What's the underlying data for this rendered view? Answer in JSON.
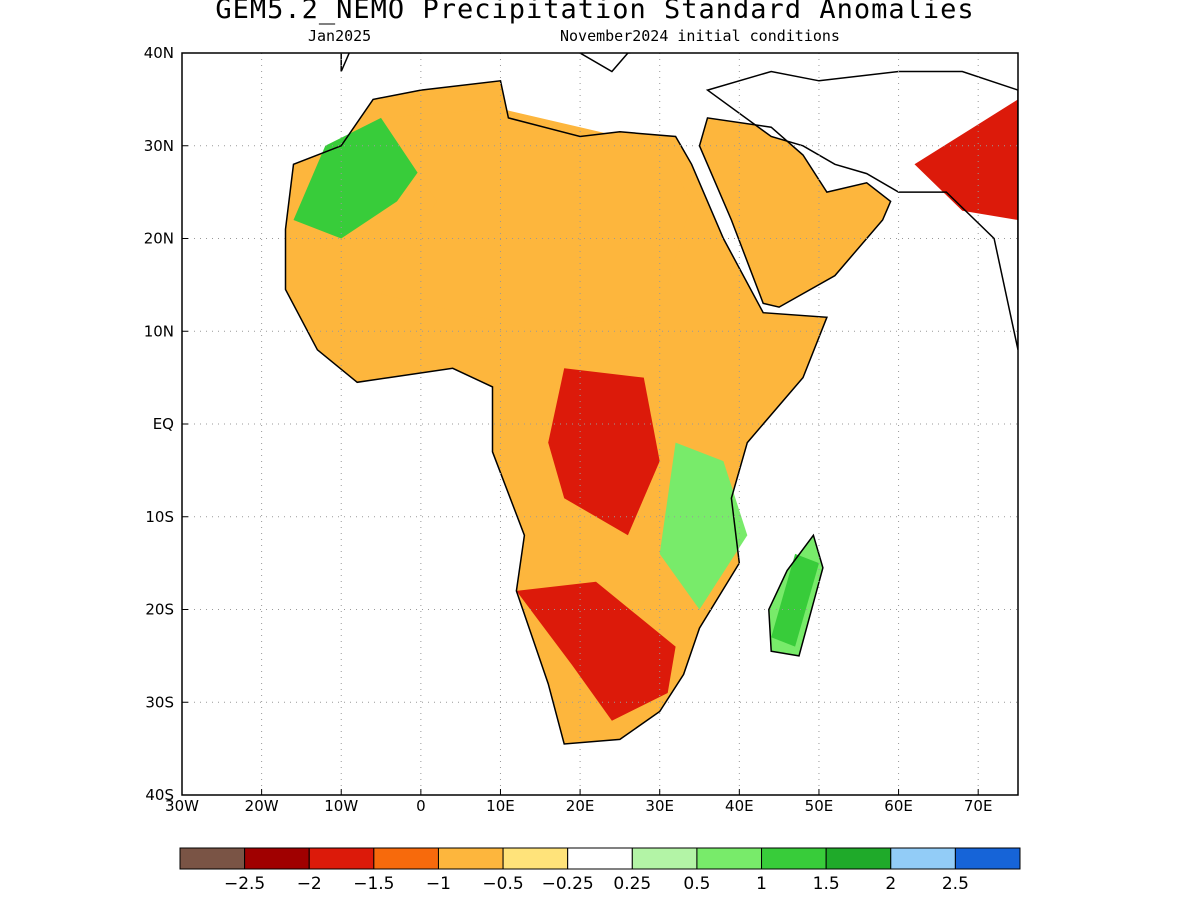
{
  "header": {
    "title": "GEM5.2_NEMO Precipitation Standard Anomalies",
    "valid_month": "Jan2025",
    "init": "November2024 initial conditions"
  },
  "map": {
    "lon_range": [
      -30,
      75
    ],
    "lat_range": [
      -40,
      40
    ],
    "lon_ticks": [
      {
        "v": -30,
        "label": "30W"
      },
      {
        "v": -20,
        "label": "20W"
      },
      {
        "v": -10,
        "label": "10W"
      },
      {
        "v": 0,
        "label": "0"
      },
      {
        "v": 10,
        "label": "10E"
      },
      {
        "v": 20,
        "label": "20E"
      },
      {
        "v": 30,
        "label": "30E"
      },
      {
        "v": 40,
        "label": "40E"
      },
      {
        "v": 50,
        "label": "50E"
      },
      {
        "v": 60,
        "label": "60E"
      },
      {
        "v": 70,
        "label": "70E"
      }
    ],
    "lat_ticks": [
      {
        "v": 40,
        "label": "40N"
      },
      {
        "v": 30,
        "label": "30N"
      },
      {
        "v": 20,
        "label": "20N"
      },
      {
        "v": 10,
        "label": "10N"
      },
      {
        "v": 0,
        "label": "EQ"
      },
      {
        "v": -10,
        "label": "10S"
      },
      {
        "v": -20,
        "label": "20S"
      },
      {
        "v": -30,
        "label": "30S"
      },
      {
        "v": -40,
        "label": "40S"
      }
    ],
    "grid": true
  },
  "colorbar": {
    "colors": [
      "#7a5445",
      "#a00000",
      "#dc1a0a",
      "#f76a0c",
      "#fdb63d",
      "#ffe37a",
      "#ffffff",
      "#b3f4a6",
      "#78eb6a",
      "#38cc3a",
      "#1faa2a",
      "#92ccf7",
      "#1664d8"
    ],
    "labels": [
      "−2.5",
      "−2",
      "−1.5",
      "−1",
      "−0.5",
      "−0.25",
      "0.25",
      "0.5",
      "1",
      "1.5",
      "2",
      "2.5"
    ]
  },
  "anomaly_regions": [
    {
      "name": "sahara-northwest-green",
      "color": "#38cc3a",
      "lonlat": [
        [
          -12,
          30
        ],
        [
          -5,
          33
        ],
        [
          2,
          30
        ],
        [
          -3,
          24
        ],
        [
          -10,
          20
        ],
        [
          -16,
          22
        ]
      ]
    },
    {
      "name": "north-africa-orange",
      "color": "#fdb63d",
      "lonlat": [
        [
          -5,
          33
        ],
        [
          10,
          34
        ],
        [
          30,
          30
        ],
        [
          34,
          24
        ],
        [
          30,
          12
        ],
        [
          15,
          10
        ],
        [
          -5,
          14
        ],
        [
          2,
          24
        ]
      ]
    },
    {
      "name": "congo-red",
      "color": "#dc1a0a",
      "lonlat": [
        [
          18,
          6
        ],
        [
          28,
          5
        ],
        [
          30,
          -4
        ],
        [
          26,
          -12
        ],
        [
          18,
          -8
        ],
        [
          16,
          -2
        ]
      ]
    },
    {
      "name": "southern-africa-red",
      "color": "#dc1a0a",
      "lonlat": [
        [
          12,
          -18
        ],
        [
          22,
          -17
        ],
        [
          32,
          -24
        ],
        [
          31,
          -29
        ],
        [
          24,
          -32
        ],
        [
          19,
          -26
        ]
      ]
    },
    {
      "name": "east-africa-green",
      "color": "#78eb6a",
      "lonlat": [
        [
          32,
          -2
        ],
        [
          38,
          -4
        ],
        [
          41,
          -12
        ],
        [
          35,
          -20
        ],
        [
          30,
          -14
        ]
      ]
    },
    {
      "name": "madagascar-green",
      "color": "#38cc3a",
      "lonlat": [
        [
          47,
          -14
        ],
        [
          50,
          -15
        ],
        [
          47,
          -24
        ],
        [
          44,
          -23
        ]
      ]
    },
    {
      "name": "india-red",
      "color": "#dc1a0a",
      "lonlat": [
        [
          62,
          28
        ],
        [
          75,
          35
        ],
        [
          75,
          22
        ],
        [
          68,
          23
        ]
      ]
    }
  ]
}
